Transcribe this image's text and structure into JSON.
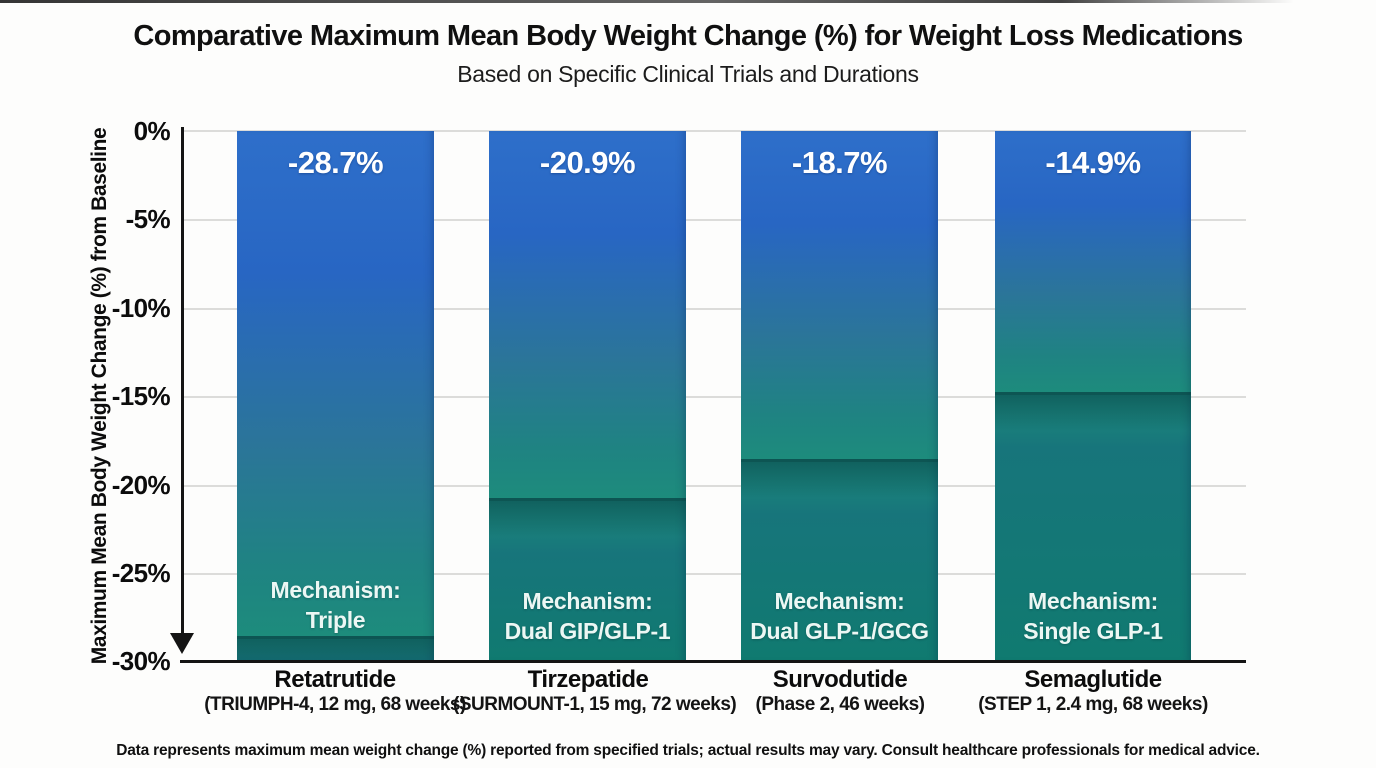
{
  "header": {
    "title": "Comparative Maximum Mean Body Weight Change (%) for Weight Loss Medications",
    "subtitle": "Based on Specific Clinical Trials and Durations"
  },
  "chart_data": {
    "type": "bar",
    "orientation": "vertical",
    "title": "Comparative Maximum Mean Body Weight Change (%) for Weight Loss Medications",
    "subtitle": "Based on Specific Clinical Trials and Durations",
    "ylabel": "Maximum Mean Body Weight Change (%) from Baseline",
    "ylim": [
      -30,
      0
    ],
    "grid": "horizontal",
    "y_ticks": [
      "0%",
      "-5%",
      "-10%",
      "-15%",
      "-20%",
      "-25%",
      "-30%"
    ],
    "bars": [
      {
        "drug": "Retatrutide",
        "trial": "(TRIUMPH-4, 12 mg, 68 weeks)",
        "value": -28.7,
        "value_label": "-28.7%",
        "mechanism_line1": "Mechanism:",
        "mechanism_line2": "Triple"
      },
      {
        "drug": "Tirzepatide",
        "trial": "(SURMOUNT-1, 15 mg, 72 weeks)",
        "value": -20.9,
        "value_label": "-20.9%",
        "mechanism_line1": "Mechanism:",
        "mechanism_line2": "Dual GIP/GLP-1"
      },
      {
        "drug": "Survodutide",
        "trial": "(Phase 2, 46 weeks)",
        "value": -18.7,
        "value_label": "-18.7%",
        "mechanism_line1": "Mechanism:",
        "mechanism_line2": "Dual GLP-1/GCG"
      },
      {
        "drug": "Semaglutide",
        "trial": "(STEP 1, 2.4 mg, 68 weeks)",
        "value": -14.9,
        "value_label": "-14.9%",
        "mechanism_line1": "Mechanism:",
        "mechanism_line2": "Single GLP-1"
      }
    ],
    "colors": {
      "bar_top_blue": "#2e6fca",
      "bar_blue": "#2866c3",
      "bar_steel": "#2b7599",
      "bar_teal": "#1f8382",
      "bar_green_teal": "#1d8c7c",
      "bar_mid_teal": "#17757b",
      "bar_bottom_teal": "#107a70",
      "value_text": "#ffffff",
      "axis": "#141414",
      "gridline": "#dcdcda",
      "text": "#0f0f0f"
    }
  },
  "footnote": "Data represents maximum mean weight change (%) reported from specified trials; actual results may vary. Consult healthcare professionals for medical advice."
}
